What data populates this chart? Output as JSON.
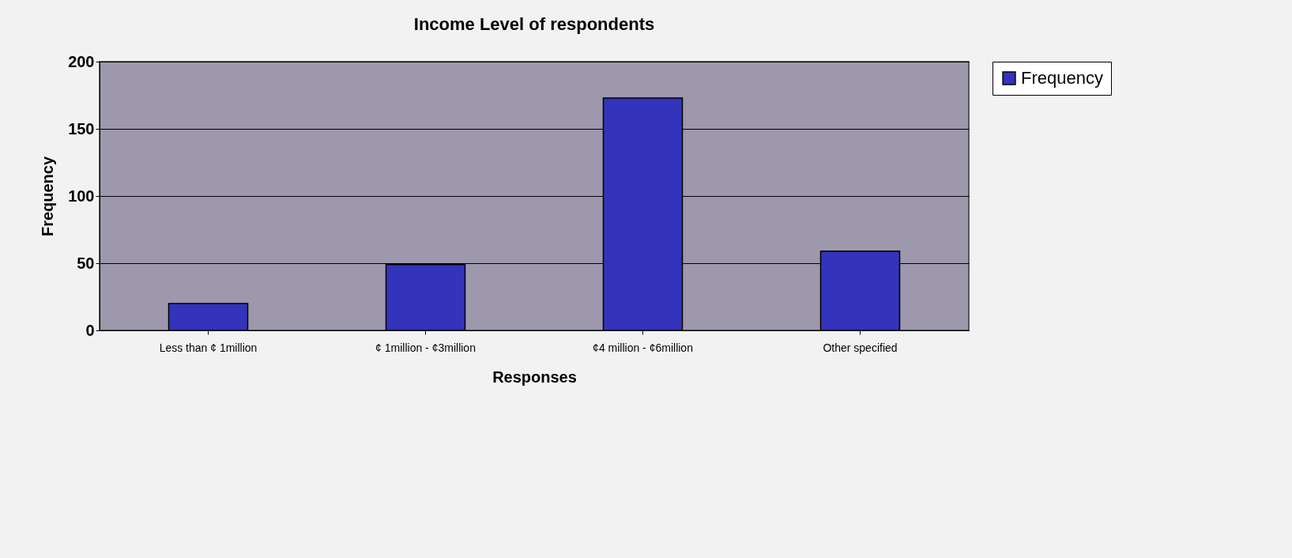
{
  "chart_data": {
    "type": "bar",
    "title": "Income Level of respondents",
    "xlabel": "Responses",
    "ylabel": "Frequency",
    "categories": [
      "Less than ¢ 1million",
      "¢ 1million - ¢3million",
      "¢4 million - ¢6million",
      "Other specified"
    ],
    "series": [
      {
        "name": "Frequency",
        "color": "#3333bb",
        "values": [
          20,
          49,
          173,
          59
        ]
      }
    ],
    "ylim": [
      0,
      200
    ],
    "yticks": [
      0,
      50,
      100,
      150,
      200
    ],
    "grid": "y",
    "legend": "right"
  }
}
